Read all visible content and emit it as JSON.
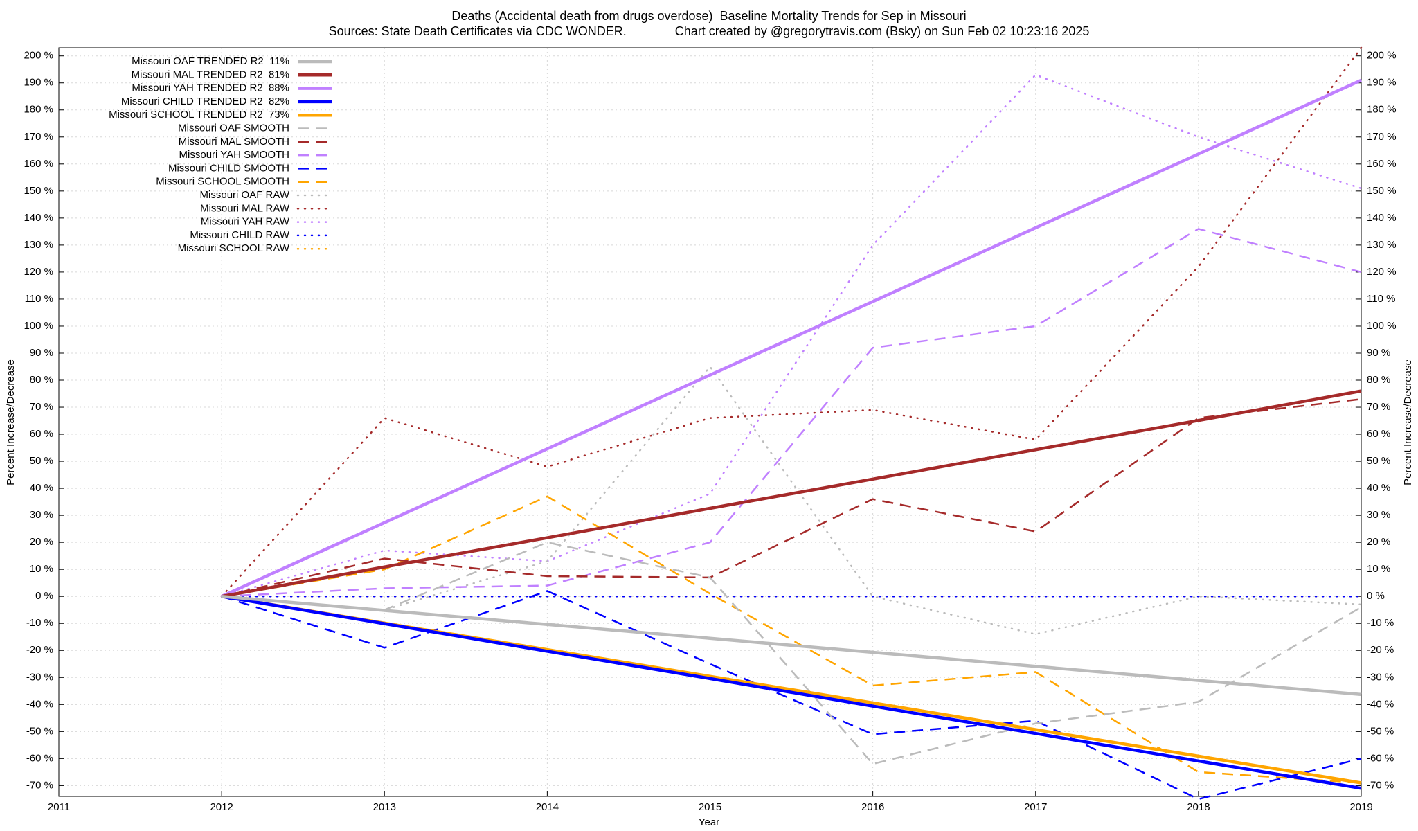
{
  "chart_data": {
    "type": "line",
    "title": "Deaths (Accidental death from drugs overdose)  Baseline Mortality Trends for Sep in Missouri",
    "subtitle": "Sources: State Death Certificates via CDC WONDER.              Chart created by @gregorytravis.com (Bsky) on Sun Feb 02 10:23:16 2025",
    "x_label": "Year",
    "y_label": "Percent Increase/Decrease",
    "x": [
      2012,
      2013,
      2014,
      2015,
      2016,
      2017,
      2018,
      2019
    ],
    "xlim": [
      2011,
      2019
    ],
    "xticks": [
      2011,
      2012,
      2013,
      2014,
      2015,
      2016,
      2017,
      2018,
      2019
    ],
    "ylim": [
      -74,
      203
    ],
    "yticks": [
      {
        "value": -70,
        "label": "-70 %"
      },
      {
        "value": -60,
        "label": "-60 %"
      },
      {
        "value": -50,
        "label": "-50 %"
      },
      {
        "value": -40,
        "label": "-40 %"
      },
      {
        "value": -30,
        "label": "-30 %"
      },
      {
        "value": -20,
        "label": "-20 %"
      },
      {
        "value": -10,
        "label": "-10 %"
      },
      {
        "value": 0,
        "label": "0 %"
      },
      {
        "value": 10,
        "label": "10 %"
      },
      {
        "value": 20,
        "label": "20 %"
      },
      {
        "value": 30,
        "label": "30 %"
      },
      {
        "value": 40,
        "label": "40 %"
      },
      {
        "value": 50,
        "label": "50 %"
      },
      {
        "value": 60,
        "label": "60 %"
      },
      {
        "value": 70,
        "label": "70 %"
      },
      {
        "value": 80,
        "label": "80 %"
      },
      {
        "value": 90,
        "label": "90 %"
      },
      {
        "value": 100,
        "label": "100 %"
      },
      {
        "value": 110,
        "label": "110 %"
      },
      {
        "value": 120,
        "label": "120 %"
      },
      {
        "value": 130,
        "label": "130 %"
      },
      {
        "value": 140,
        "label": "140 %"
      },
      {
        "value": 150,
        "label": "150 %"
      },
      {
        "value": 160,
        "label": "160 %"
      },
      {
        "value": 170,
        "label": "170 %"
      },
      {
        "value": 180,
        "label": "180 %"
      },
      {
        "value": 190,
        "label": "190 %"
      },
      {
        "value": 200,
        "label": "200 %"
      }
    ],
    "grid": true,
    "legend": "top-left",
    "series": [
      {
        "name": "Missouri OAF TRENDED R2  11%",
        "color": "#bbbbbb",
        "line_style": "solid",
        "values": [
          0,
          -5.2,
          -10.4,
          -15.5,
          -20.7,
          -25.9,
          -31.1,
          -36.3
        ]
      },
      {
        "name": "Missouri MAL TRENDED R2  81%",
        "color": "#a52a2a",
        "line_style": "solid",
        "values": [
          0,
          10.9,
          21.7,
          32.6,
          43.4,
          54.3,
          65.1,
          76
        ]
      },
      {
        "name": "Missouri YAH TRENDED R2  88%",
        "color": "#c080ff",
        "line_style": "solid",
        "values": [
          0,
          27.3,
          54.6,
          81.9,
          109.1,
          136.4,
          163.7,
          191
        ]
      },
      {
        "name": "Missouri CHILD TRENDED R2  82%",
        "color": "#0000ff",
        "line_style": "solid",
        "values": [
          0,
          -10.1,
          -20.3,
          -30.4,
          -40.6,
          -50.7,
          -60.9,
          -71
        ]
      },
      {
        "name": "Missouri SCHOOL TRENDED R2  73%",
        "color": "#ffa500",
        "line_style": "solid",
        "values": [
          0,
          -9.9,
          -19.7,
          -29.6,
          -39.4,
          -49.3,
          -59.1,
          -69
        ]
      },
      {
        "name": "Missouri OAF SMOOTH",
        "color": "#bbbbbb",
        "line_style": "dashed",
        "values": [
          0,
          -5,
          20,
          7,
          -62,
          -47,
          -39,
          -4
        ]
      },
      {
        "name": "Missouri MAL SMOOTH",
        "color": "#a52a2a",
        "line_style": "dashed",
        "values": [
          0,
          14,
          7.5,
          7,
          36,
          24,
          66,
          73
        ]
      },
      {
        "name": "Missouri YAH SMOOTH",
        "color": "#c080ff",
        "line_style": "dashed",
        "values": [
          0,
          3,
          4,
          20,
          92,
          100,
          136,
          120
        ]
      },
      {
        "name": "Missouri CHILD SMOOTH",
        "color": "#0000ff",
        "line_style": "dashed",
        "values": [
          0,
          -19,
          2,
          -25,
          -51,
          -46,
          -75,
          -60
        ]
      },
      {
        "name": "Missouri SCHOOL SMOOTH",
        "color": "#ffa500",
        "line_style": "dashed",
        "values": [
          0,
          10,
          37,
          1,
          -33,
          -28,
          -65,
          -69
        ]
      },
      {
        "name": "Missouri OAF RAW",
        "color": "#bbbbbb",
        "line_style": "dotted",
        "values": [
          0,
          -5,
          13,
          85,
          0,
          -14,
          0,
          -3
        ]
      },
      {
        "name": "Missouri MAL RAW",
        "color": "#a52a2a",
        "line_style": "dotted",
        "values": [
          0,
          66,
          48,
          66,
          69,
          58,
          122,
          203
        ]
      },
      {
        "name": "Missouri YAH RAW",
        "color": "#c080ff",
        "line_style": "dotted",
        "values": [
          0,
          17,
          13,
          38,
          130,
          193,
          170,
          151
        ]
      },
      {
        "name": "Missouri CHILD RAW",
        "color": "#0000ff",
        "line_style": "dotted",
        "values": [
          0,
          0,
          0,
          0,
          0,
          0,
          0,
          0
        ]
      },
      {
        "name": "Missouri SCHOOL RAW",
        "color": "#ffa500",
        "line_style": "dotted",
        "values": [
          0,
          0,
          0,
          0,
          0,
          0,
          0,
          0
        ]
      }
    ]
  }
}
